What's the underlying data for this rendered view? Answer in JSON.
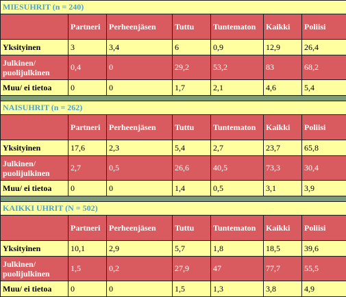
{
  "columns": [
    "Partneri",
    "Perheenjäsen",
    "Tuttu",
    "Tuntematon",
    "Kaikki",
    "Poliisi"
  ],
  "sections": [
    {
      "title": "MIESUHRIT (n = 240)",
      "rows": [
        {
          "label": "Yksityinen",
          "values": [
            "3",
            "3,4",
            "6",
            "0,9",
            "12,9",
            "26,4"
          ]
        },
        {
          "label": "Julkinen/ puolijulkinen",
          "values": [
            "0,4",
            "0",
            "29,2",
            "53,2",
            "83",
            "68,2"
          ]
        },
        {
          "label": "Muu/ ei tietoa",
          "values": [
            "0",
            "0",
            "1,7",
            "2,1",
            "4,6",
            "5,4"
          ]
        }
      ]
    },
    {
      "title": "NAISUHRIT (n = 262)",
      "rows": [
        {
          "label": "Yksityinen",
          "values": [
            "17,6",
            "2,3",
            "5,4",
            "2,7",
            "23,7",
            "65,8"
          ]
        },
        {
          "label": "Julkinen/ puolijulkinen",
          "values": [
            "2,7",
            "0,5",
            "26,6",
            "40,5",
            "73,3",
            "30,4"
          ]
        },
        {
          "label": "Muu/ ei tietoa",
          "values": [
            "0",
            "0",
            "1,4",
            "0,5",
            "3,1",
            "3,9"
          ]
        }
      ]
    },
    {
      "title": "KAIKKI UHRIT (N = 502)",
      "rows": [
        {
          "label": "Yksityinen",
          "values": [
            "10,1",
            "2,9",
            "5,7",
            "1,8",
            "18,5",
            "39,6"
          ]
        },
        {
          "label": "Julkinen/ puolijulkinen",
          "values": [
            "1,5",
            "0,2",
            "27,9",
            "47",
            "77,7",
            "55,5"
          ]
        },
        {
          "label": "Muu/ ei tietoa",
          "values": [
            "0",
            "0",
            "1,5",
            "1,3",
            "3,8",
            "4,9"
          ]
        }
      ]
    }
  ]
}
